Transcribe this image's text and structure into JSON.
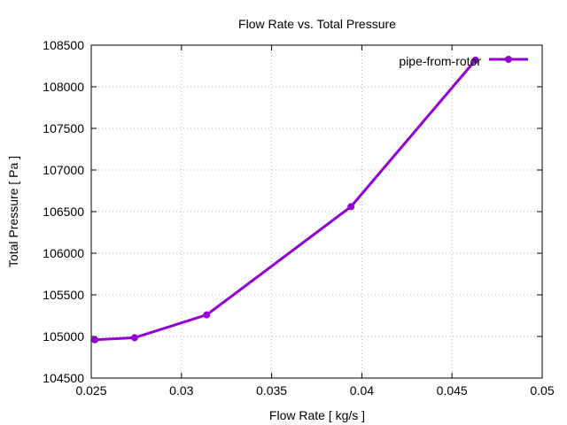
{
  "chart_data": {
    "type": "line",
    "title": "Flow Rate vs. Total Pressure",
    "xlabel": "Flow Rate [ kg/s ]",
    "ylabel": "Total Pressure [ Pa ]",
    "xlim": [
      0.025,
      0.05
    ],
    "ylim": [
      104500,
      108500
    ],
    "xticks": [
      0.025,
      0.03,
      0.035,
      0.04,
      0.045,
      0.05
    ],
    "xtick_labels": [
      "0.025",
      "0.03",
      "0.035",
      "0.04",
      "0.045",
      "0.05"
    ],
    "yticks": [
      104500,
      105000,
      105500,
      106000,
      106500,
      107000,
      107500,
      108000,
      108500
    ],
    "ytick_labels": [
      "104500",
      "105000",
      "105500",
      "106000",
      "106500",
      "107000",
      "107500",
      "108000",
      "108500"
    ],
    "grid": true,
    "legend_position": "top-right",
    "series": [
      {
        "name": "pipe-from-rotor",
        "color": "#9400d3",
        "marker": "circle",
        "x": [
          0.0252,
          0.0274,
          0.0314,
          0.0394,
          0.0463
        ],
        "y": [
          104960,
          104985,
          105260,
          106560,
          108320
        ]
      }
    ]
  }
}
